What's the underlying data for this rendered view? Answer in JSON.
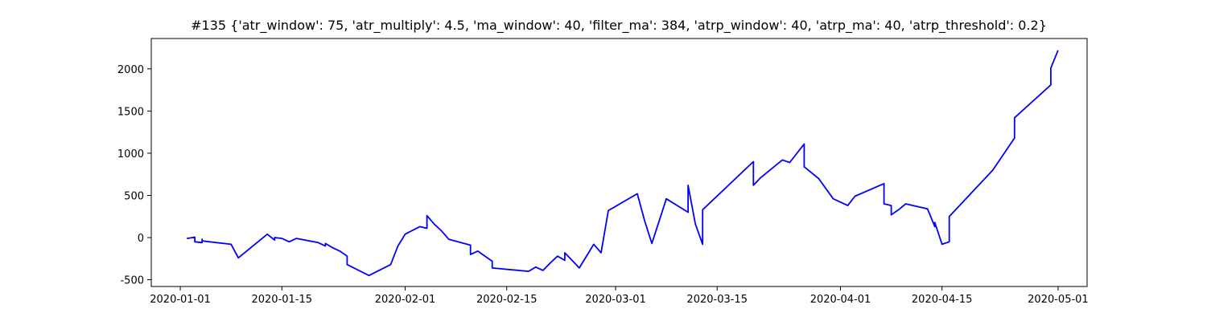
{
  "chart_data": {
    "type": "line",
    "title": "#135 {'atr_window': 75, 'atr_multiply': 4.5, 'ma_window': 40, 'filter_ma': 384, 'atrp_window': 40, 'atrp_ma': 40, 'atrp_threshold': 0.2}",
    "xlabel": "",
    "ylabel": "",
    "x_axis_type": "date",
    "xlim": [
      "2019-12-28",
      "2020-05-05"
    ],
    "ylim": [
      -580,
      2360
    ],
    "x_ticks": [
      "2020-01-01",
      "2020-01-15",
      "2020-02-01",
      "2020-02-15",
      "2020-03-01",
      "2020-03-15",
      "2020-04-01",
      "2020-04-15",
      "2020-05-01"
    ],
    "y_ticks": [
      -500,
      0,
      500,
      1000,
      1500,
      2000
    ],
    "grid": false,
    "legend": "none",
    "series": [
      {
        "color": "#0000ff",
        "points": [
          [
            "2020-01-02",
            0
          ],
          [
            "2020-01-02",
            -10
          ],
          [
            "2020-01-03",
            5
          ],
          [
            "2020-01-03",
            -50
          ],
          [
            "2020-01-04",
            -60
          ],
          [
            "2020-01-04",
            -20
          ],
          [
            "2020-01-04",
            -40
          ],
          [
            "2020-01-08",
            -80
          ],
          [
            "2020-01-09",
            -240
          ],
          [
            "2020-01-13",
            40
          ],
          [
            "2020-01-14",
            -30
          ],
          [
            "2020-01-14",
            0
          ],
          [
            "2020-01-15",
            -10
          ],
          [
            "2020-01-16",
            -50
          ],
          [
            "2020-01-17",
            -10
          ],
          [
            "2020-01-20",
            -60
          ],
          [
            "2020-01-21",
            -100
          ],
          [
            "2020-01-21",
            -70
          ],
          [
            "2020-01-22",
            -120
          ],
          [
            "2020-01-23",
            -160
          ],
          [
            "2020-01-24",
            -220
          ],
          [
            "2020-01-24",
            -320
          ],
          [
            "2020-01-27",
            -450
          ],
          [
            "2020-01-30",
            -320
          ],
          [
            "2020-01-31",
            -100
          ],
          [
            "2020-02-01",
            40
          ],
          [
            "2020-02-03",
            130
          ],
          [
            "2020-02-04",
            110
          ],
          [
            "2020-02-04",
            260
          ],
          [
            "2020-02-05",
            160
          ],
          [
            "2020-02-06",
            80
          ],
          [
            "2020-02-07",
            -20
          ],
          [
            "2020-02-10",
            -90
          ],
          [
            "2020-02-10",
            -200
          ],
          [
            "2020-02-11",
            -160
          ],
          [
            "2020-02-13",
            -280
          ],
          [
            "2020-02-13",
            -360
          ],
          [
            "2020-02-18",
            -400
          ],
          [
            "2020-02-19",
            -350
          ],
          [
            "2020-02-20",
            -390
          ],
          [
            "2020-02-21",
            -300
          ],
          [
            "2020-02-22",
            -220
          ],
          [
            "2020-02-23",
            -270
          ],
          [
            "2020-02-23",
            -180
          ],
          [
            "2020-02-25",
            -360
          ],
          [
            "2020-02-27",
            -80
          ],
          [
            "2020-02-28",
            -180
          ],
          [
            "2020-02-29",
            320
          ],
          [
            "2020-03-04",
            520
          ],
          [
            "2020-03-05",
            200
          ],
          [
            "2020-03-06",
            -70
          ],
          [
            "2020-03-08",
            460
          ],
          [
            "2020-03-11",
            300
          ],
          [
            "2020-03-11",
            620
          ],
          [
            "2020-03-12",
            160
          ],
          [
            "2020-03-13",
            -80
          ],
          [
            "2020-03-13",
            330
          ],
          [
            "2020-03-20",
            900
          ],
          [
            "2020-03-20",
            620
          ],
          [
            "2020-03-21",
            710
          ],
          [
            "2020-03-24",
            920
          ],
          [
            "2020-03-25",
            890
          ],
          [
            "2020-03-27",
            1110
          ],
          [
            "2020-03-27",
            840
          ],
          [
            "2020-03-29",
            700
          ],
          [
            "2020-03-31",
            460
          ],
          [
            "2020-04-02",
            380
          ],
          [
            "2020-04-03",
            490
          ],
          [
            "2020-04-07",
            640
          ],
          [
            "2020-04-07",
            400
          ],
          [
            "2020-04-08",
            380
          ],
          [
            "2020-04-08",
            270
          ],
          [
            "2020-04-09",
            330
          ],
          [
            "2020-04-10",
            400
          ],
          [
            "2020-04-13",
            340
          ],
          [
            "2020-04-14",
            130
          ],
          [
            "2020-04-14",
            180
          ],
          [
            "2020-04-15",
            -80
          ],
          [
            "2020-04-16",
            -50
          ],
          [
            "2020-04-16",
            250
          ],
          [
            "2020-04-22",
            800
          ],
          [
            "2020-04-25",
            1180
          ],
          [
            "2020-04-25",
            1420
          ],
          [
            "2020-04-30",
            1810
          ],
          [
            "2020-04-30",
            2010
          ],
          [
            "2020-05-01",
            2220
          ]
        ]
      }
    ]
  }
}
